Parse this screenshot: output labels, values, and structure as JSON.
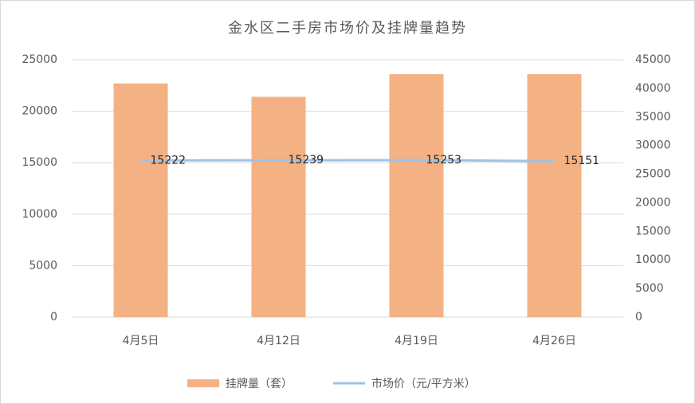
{
  "chart_data": {
    "type": "bar-line",
    "title": "金水区二手房市场价及挂牌量趋势",
    "categories": [
      "4月5日",
      "4月12日",
      "4月19日",
      "4月26日"
    ],
    "series": [
      {
        "name": "挂牌量（套）",
        "type": "bar",
        "color": "#f4b183",
        "values": [
          22700,
          21400,
          23600,
          23600
        ]
      },
      {
        "name": "市场价（元/平方米）",
        "type": "line",
        "color": "#9dc3e6",
        "values": [
          15222,
          15239,
          15253,
          15151
        ],
        "data_labels": true
      }
    ],
    "ylim": [
      0,
      25000
    ],
    "yticks": [
      0,
      5000,
      10000,
      15000,
      20000,
      25000
    ],
    "y2lim": [
      0,
      45000
    ],
    "y2ticks": [
      0,
      5000,
      10000,
      15000,
      20000,
      25000,
      30000,
      35000,
      40000,
      45000
    ],
    "grid": true,
    "legend": "bottom"
  }
}
